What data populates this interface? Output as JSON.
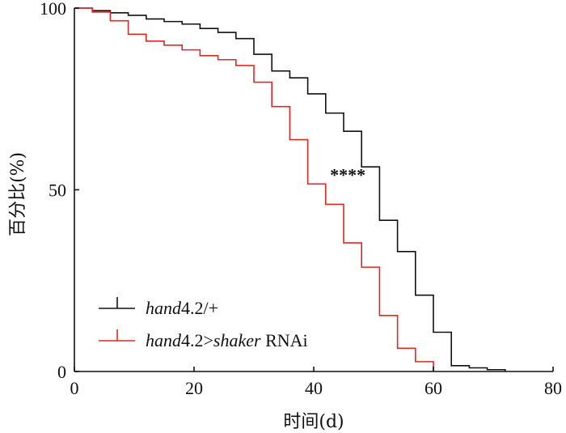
{
  "chart_data": {
    "type": "line",
    "step": true,
    "title": "",
    "xlabel": "时间(d)",
    "ylabel": "百分比(%)",
    "xlim": [
      0,
      80
    ],
    "ylim": [
      0,
      100
    ],
    "xticks": [
      "0",
      "20",
      "40",
      "60",
      "80"
    ],
    "yticks": [
      "0",
      "50",
      "100"
    ],
    "grid": false,
    "legend_position": "bottom-left",
    "annotation": "****",
    "series": [
      {
        "name_italic": "hand",
        "name_rest": "4.2/+",
        "color": "#111111",
        "x": [
          0,
          3,
          6,
          9,
          12,
          15,
          18,
          21,
          24,
          27,
          30,
          33,
          36,
          39,
          42,
          45,
          48,
          51,
          54,
          57,
          60,
          63,
          66,
          69,
          72
        ],
        "y": [
          100,
          99.3,
          98.7,
          98,
          97,
          96.3,
          95.6,
          94.4,
          93.3,
          91.6,
          87.3,
          82.7,
          80.8,
          76.4,
          71.1,
          66.1,
          56.3,
          41.6,
          33,
          21,
          10.8,
          1.6,
          1,
          0.5,
          0
        ]
      },
      {
        "name_italic_1": "hand",
        "name_mid": "4.2>",
        "name_italic_2": "shaker",
        "name_rest": " RNAi",
        "color": "#d92b25",
        "x": [
          0,
          3,
          6,
          9,
          12,
          15,
          18,
          21,
          24,
          27,
          30,
          33,
          36,
          39,
          42,
          45,
          48,
          51,
          54,
          57,
          60
        ],
        "y": [
          100,
          98.9,
          96.5,
          92.8,
          90.9,
          89.8,
          88.5,
          86.9,
          85.8,
          84.2,
          79.6,
          72.9,
          63.8,
          51.6,
          46,
          35.4,
          28.7,
          15.4,
          6.4,
          2.7,
          0
        ]
      }
    ]
  }
}
